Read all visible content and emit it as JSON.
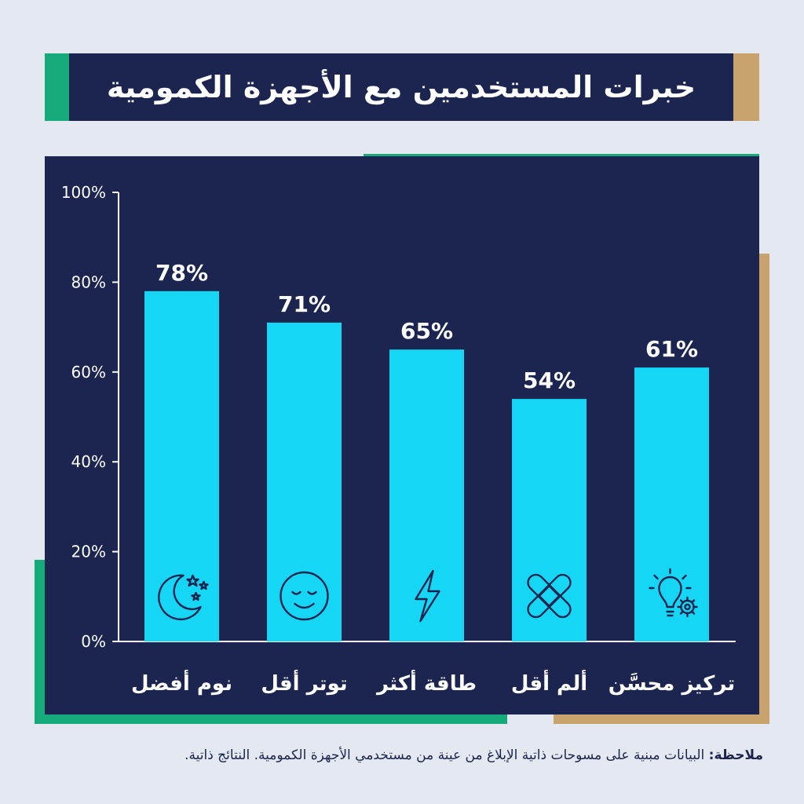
{
  "title": "خبرات المستخدمين مع الأجهزة الكمومية",
  "colors": {
    "background": "#e4e8f0",
    "panel": "#1b2550",
    "bar": "#16d6f5",
    "accent_green": "#16a97a",
    "accent_tan": "#c9a36e",
    "text": "#ffffff",
    "icon": "#1b2550"
  },
  "chart_data": {
    "type": "bar",
    "categories": [
      "نوم أفضل",
      "توتر أقل",
      "طاقة أكثر",
      "ألم أقل",
      "تركيز محسَّن"
    ],
    "values": [
      78,
      71,
      65,
      54,
      61
    ],
    "value_labels": [
      "78%",
      "71%",
      "65%",
      "54%",
      "61%"
    ],
    "icons": [
      "moon-stars-icon",
      "smiley-face-icon",
      "lightning-bolt-icon",
      "bandage-icon",
      "lightbulb-gear-icon"
    ],
    "ylim": [
      0,
      100
    ],
    "yticks": [
      0,
      20,
      40,
      60,
      80,
      100
    ],
    "ytick_labels": [
      "0%",
      "20%",
      "40%",
      "60%",
      "80%",
      "100%"
    ],
    "grid": false,
    "legend": "none"
  },
  "note": {
    "label": "ملاحظة:",
    "text": " البيانات مبنية على مسوحات ذاتية الإبلاغ من عينة من مستخدمي الأجهزة الكمومية. النتائج ذاتية."
  }
}
